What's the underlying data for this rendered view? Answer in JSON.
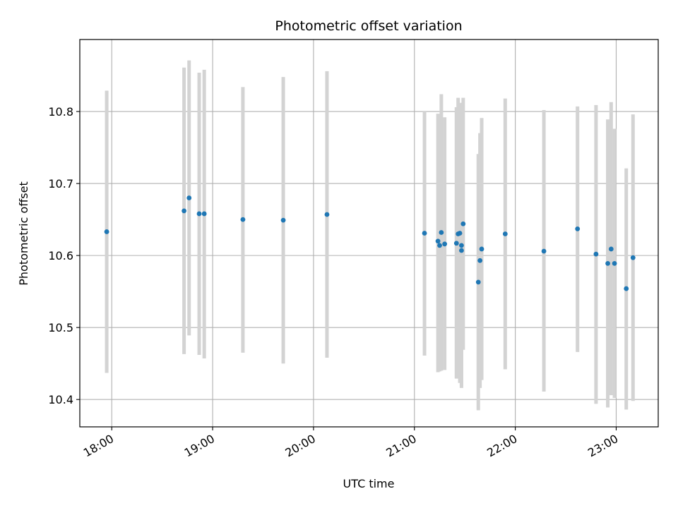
{
  "chart_data": {
    "type": "scatter",
    "title": "Photometric offset variation",
    "xlabel": "UTC time",
    "ylabel": "Photometric offset",
    "x_axis": "time",
    "xlim": [
      "17:41",
      "23:25"
    ],
    "ylim": [
      10.362,
      10.9
    ],
    "x_ticks": [
      "18:00",
      "19:00",
      "20:00",
      "21:00",
      "22:00",
      "23:00"
    ],
    "y_ticks": [
      10.4,
      10.5,
      10.6,
      10.7,
      10.8
    ],
    "y_tick_labels": [
      "10.4",
      "10.5",
      "10.6",
      "10.7",
      "10.8"
    ],
    "grid": true,
    "point_color": "#1f77b4",
    "errorbar_color": "#d3d3d3",
    "points": [
      {
        "x": "17:57",
        "y": 10.633,
        "ylow": 10.437,
        "yhigh": 10.829
      },
      {
        "x": "18:43",
        "y": 10.662,
        "ylow": 10.463,
        "yhigh": 10.861
      },
      {
        "x": "18:46",
        "y": 10.68,
        "ylow": 10.489,
        "yhigh": 10.871
      },
      {
        "x": "18:52",
        "y": 10.658,
        "ylow": 10.462,
        "yhigh": 10.854
      },
      {
        "x": "18:55",
        "y": 10.658,
        "ylow": 10.457,
        "yhigh": 10.858
      },
      {
        "x": "19:18",
        "y": 10.65,
        "ylow": 10.465,
        "yhigh": 10.834
      },
      {
        "x": "19:42",
        "y": 10.649,
        "ylow": 10.45,
        "yhigh": 10.848
      },
      {
        "x": "20:08",
        "y": 10.657,
        "ylow": 10.458,
        "yhigh": 10.856
      },
      {
        "x": "21:06",
        "y": 10.631,
        "ylow": 10.461,
        "yhigh": 10.8
      },
      {
        "x": "21:14",
        "y": 10.62,
        "ylow": 10.438,
        "yhigh": 10.797
      },
      {
        "x": "21:15",
        "y": 10.614,
        "ylow": 10.439,
        "yhigh": 10.789
      },
      {
        "x": "21:16",
        "y": 10.632,
        "ylow": 10.44,
        "yhigh": 10.824
      },
      {
        "x": "21:18",
        "y": 10.616,
        "ylow": 10.441,
        "yhigh": 10.792
      },
      {
        "x": "21:25",
        "y": 10.617,
        "ylow": 10.429,
        "yhigh": 10.806
      },
      {
        "x": "21:26",
        "y": 10.63,
        "ylow": 10.441,
        "yhigh": 10.819
      },
      {
        "x": "21:27",
        "y": 10.631,
        "ylow": 10.423,
        "yhigh": 10.809
      },
      {
        "x": "21:28",
        "y": 10.614,
        "ylow": 10.416,
        "yhigh": 10.812
      },
      {
        "x": "21:28",
        "y": 10.607,
        "ylow": 10.419,
        "yhigh": 10.795
      },
      {
        "x": "21:29",
        "y": 10.644,
        "ylow": 10.469,
        "yhigh": 10.819
      },
      {
        "x": "21:38",
        "y": 10.563,
        "ylow": 10.385,
        "yhigh": 10.741
      },
      {
        "x": "21:39",
        "y": 10.593,
        "ylow": 10.416,
        "yhigh": 10.77
      },
      {
        "x": "21:40",
        "y": 10.609,
        "ylow": 10.427,
        "yhigh": 10.791
      },
      {
        "x": "21:54",
        "y": 10.63,
        "ylow": 10.442,
        "yhigh": 10.818
      },
      {
        "x": "22:17",
        "y": 10.606,
        "ylow": 10.411,
        "yhigh": 10.802
      },
      {
        "x": "22:37",
        "y": 10.637,
        "ylow": 10.466,
        "yhigh": 10.807
      },
      {
        "x": "22:48",
        "y": 10.602,
        "ylow": 10.394,
        "yhigh": 10.809
      },
      {
        "x": "22:55",
        "y": 10.589,
        "ylow": 10.389,
        "yhigh": 10.789
      },
      {
        "x": "22:57",
        "y": 10.609,
        "ylow": 10.406,
        "yhigh": 10.813
      },
      {
        "x": "22:59",
        "y": 10.589,
        "ylow": 10.402,
        "yhigh": 10.776
      },
      {
        "x": "23:06",
        "y": 10.554,
        "ylow": 10.386,
        "yhigh": 10.721
      },
      {
        "x": "23:10",
        "y": 10.597,
        "ylow": 10.398,
        "yhigh": 10.796
      }
    ]
  }
}
